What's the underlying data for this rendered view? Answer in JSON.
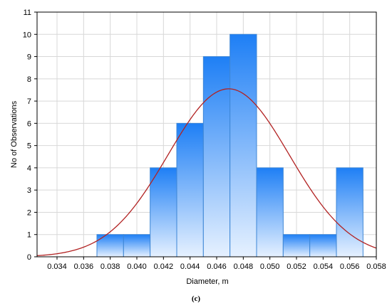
{
  "chart_data": {
    "type": "bar",
    "subtype": "histogram",
    "xlabel": "Diameter, m",
    "ylabel": "No of Observations",
    "caption": "(c)",
    "xlim": [
      0.0325,
      0.058
    ],
    "ylim": [
      0,
      11
    ],
    "x_ticks": [
      "0.034",
      "0.036",
      "0.038",
      "0.040",
      "0.042",
      "0.044",
      "0.046",
      "0.048",
      "0.050",
      "0.052",
      "0.054",
      "0.056",
      "0.058"
    ],
    "y_ticks": [
      "0",
      "1",
      "2",
      "3",
      "4",
      "5",
      "6",
      "7",
      "8",
      "9",
      "10",
      "11"
    ],
    "bin_edges": [
      0.037,
      0.039,
      0.041,
      0.043,
      0.045,
      0.047,
      0.049,
      0.051,
      0.053,
      0.055,
      0.057
    ],
    "counts": [
      1,
      1,
      4,
      6,
      9,
      10,
      4,
      1,
      1,
      4
    ],
    "normal_fit": {
      "mean": 0.0469,
      "sd": 0.00456,
      "peak": 7.55
    },
    "grid": true,
    "colors": {
      "bar_top": "#1e7ff5",
      "bar_bottom": "#e6f1ff",
      "bar_edge": "#3d86d6",
      "fit_line": "#b22222",
      "grid": "#d8d8d8"
    }
  }
}
